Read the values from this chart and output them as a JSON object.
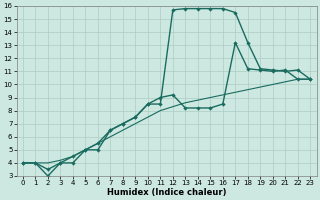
{
  "xlabel": "Humidex (Indice chaleur)",
  "xlim": [
    -0.5,
    23.5
  ],
  "ylim": [
    3,
    16
  ],
  "xticks": [
    0,
    1,
    2,
    3,
    4,
    5,
    6,
    7,
    8,
    9,
    10,
    11,
    12,
    13,
    14,
    15,
    16,
    17,
    18,
    19,
    20,
    21,
    22,
    23
  ],
  "yticks": [
    3,
    4,
    5,
    6,
    7,
    8,
    9,
    10,
    11,
    12,
    13,
    14,
    15,
    16
  ],
  "bg_color": "#cce8e0",
  "grid_color": "#aaccc4",
  "line_color": "#1a6b60",
  "curve1_x": [
    0,
    1,
    2,
    3,
    4,
    5,
    6,
    7,
    8,
    9,
    10,
    11,
    12,
    13,
    14,
    15,
    16,
    17,
    18,
    19,
    20,
    21,
    22,
    23
  ],
  "curve1_y": [
    4,
    4,
    3,
    4,
    4,
    5,
    5,
    6.5,
    7,
    7.5,
    8.5,
    8.5,
    15.7,
    15.8,
    15.8,
    15.8,
    15.8,
    15.5,
    13.2,
    11.2,
    11.1,
    11.0,
    11.1,
    10.4
  ],
  "curve2_x": [
    0,
    1,
    2,
    3,
    4,
    5,
    6,
    7,
    8,
    9,
    10,
    11,
    12,
    13,
    14,
    15,
    16,
    17,
    18,
    19,
    20,
    21,
    22,
    23
  ],
  "curve2_y": [
    4,
    4,
    3.5,
    4,
    4.5,
    5,
    5.5,
    6.5,
    7,
    7.5,
    8.5,
    9.0,
    9.2,
    8.2,
    8.2,
    8.2,
    8.5,
    13.2,
    11.2,
    11.1,
    11.0,
    11.1,
    10.4,
    10.4
  ],
  "curve3_x": [
    0,
    1,
    2,
    3,
    4,
    5,
    6,
    7,
    8,
    9,
    10,
    11,
    12,
    13,
    14,
    15,
    16,
    17,
    18,
    19,
    20,
    21,
    22,
    23
  ],
  "curve3_y": [
    4,
    4,
    4.0,
    4.2,
    4.5,
    5,
    5.5,
    6.0,
    6.5,
    7.0,
    7.5,
    8.0,
    8.3,
    8.6,
    8.8,
    9.0,
    9.2,
    9.4,
    9.6,
    9.8,
    10.0,
    10.2,
    10.4,
    10.4
  ]
}
